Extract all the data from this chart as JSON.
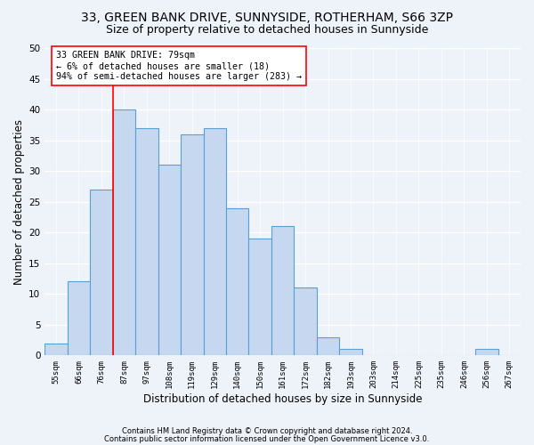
{
  "title1": "33, GREEN BANK DRIVE, SUNNYSIDE, ROTHERHAM, S66 3ZP",
  "title2": "Size of property relative to detached houses in Sunnyside",
  "xlabel": "Distribution of detached houses by size in Sunnyside",
  "ylabel": "Number of detached properties",
  "bin_labels": [
    "55sqm",
    "66sqm",
    "76sqm",
    "87sqm",
    "97sqm",
    "108sqm",
    "119sqm",
    "129sqm",
    "140sqm",
    "150sqm",
    "161sqm",
    "172sqm",
    "182sqm",
    "193sqm",
    "203sqm",
    "214sqm",
    "225sqm",
    "235sqm",
    "246sqm",
    "256sqm",
    "267sqm"
  ],
  "values": [
    2,
    12,
    27,
    40,
    37,
    31,
    36,
    37,
    24,
    19,
    21,
    11,
    3,
    1,
    0,
    0,
    0,
    0,
    0,
    1,
    0
  ],
  "bar_color": "#c5d8f0",
  "bar_edge_color": "#5a9fd4",
  "red_line_index": 2,
  "annotation_text": "33 GREEN BANK DRIVE: 79sqm\n← 6% of detached houses are smaller (18)\n94% of semi-detached houses are larger (283) →",
  "footnote1": "Contains HM Land Registry data © Crown copyright and database right 2024.",
  "footnote2": "Contains public sector information licensed under the Open Government Licence v3.0.",
  "ylim": [
    0,
    50
  ],
  "yticks": [
    0,
    5,
    10,
    15,
    20,
    25,
    30,
    35,
    40,
    45,
    50
  ],
  "bg_color": "#eef2f9",
  "grid_color": "#ffffff",
  "title1_fontsize": 10,
  "title2_fontsize": 9,
  "xlabel_fontsize": 8.5,
  "ylabel_fontsize": 8.5
}
